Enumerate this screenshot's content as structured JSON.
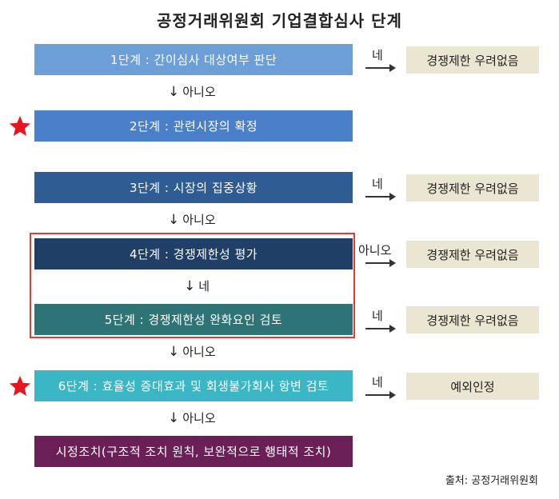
{
  "title": "공정거래위원회 기업결합심사 단계",
  "steps": [
    {
      "label": "1단계 : 간이심사 대상여부 판단",
      "color": "#6c9fd8"
    },
    {
      "label": "2단계 : 관련시장의 확정",
      "color": "#4a7fc9"
    },
    {
      "label": "3단계 : 시장의 집중상황",
      "color": "#2e5c93"
    },
    {
      "label": "4단계 : 경쟁제한성 평가",
      "color": "#1f3f66"
    },
    {
      "label": "5단계 : 경쟁제한성 완화요인 검토",
      "color": "#2e7476"
    },
    {
      "label": "6단계 : 효율성 증대효과 및 회생불가회사 항변 검토",
      "color": "#3bb6c4"
    },
    {
      "label": "시정조치(구조적 조치 원칙, 보완적으로 행태적 조치)",
      "color": "#6a2057"
    }
  ],
  "flows": {
    "f1": "아니오",
    "f3": "아니오",
    "f4": "네",
    "f5": "아니오",
    "f6": "아니오"
  },
  "branches": {
    "b1": "네",
    "b3": "네",
    "b4": "아니오",
    "b5": "네",
    "b6": "네"
  },
  "results": {
    "r1": "경쟁제한 우려없음",
    "r3": "경쟁제한 우려없음",
    "r4": "경쟁제한 우려없음",
    "r5": "경쟁제한 우려없음",
    "r6": "예외인정"
  },
  "arrow_glyph": "↓",
  "star_color": "#e8141e",
  "highlight_color": "#e53935",
  "source": "출처: 공정거래위원회"
}
